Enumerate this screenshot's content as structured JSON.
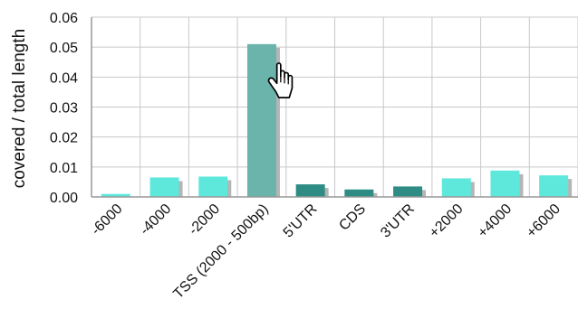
{
  "chart_data": {
    "type": "bar",
    "title": "",
    "xlabel": "",
    "ylabel": "covered / total length",
    "categories": [
      "-6000",
      "-4000",
      "-2000",
      "TSS (2000 - 500bp)",
      "5'UTR",
      "CDS",
      "3'UTR",
      "+2000",
      "+4000",
      "+6000"
    ],
    "values": [
      0.001,
      0.0065,
      0.0068,
      0.051,
      0.0042,
      0.0025,
      0.0035,
      0.0062,
      0.0088,
      0.0072
    ],
    "bar_colors": [
      "#5ee8dc",
      "#5ee8dc",
      "#5ee8dc",
      "#6ab4ac",
      "#2e8c84",
      "#2e8c84",
      "#2e8c84",
      "#5ee8dc",
      "#5ee8dc",
      "#5ee8dc"
    ],
    "ylim": [
      0,
      0.06
    ],
    "yticks": [
      "0.00",
      "0.01",
      "0.02",
      "0.03",
      "0.04",
      "0.05",
      "0.06"
    ],
    "grid": true,
    "legend": false
  },
  "colors": {
    "grid": "#c8c8c8",
    "axis": "#999999",
    "shadow": "#b5b5b5"
  },
  "overlay": {
    "cursor_icon": "hand-pointer-icon"
  }
}
